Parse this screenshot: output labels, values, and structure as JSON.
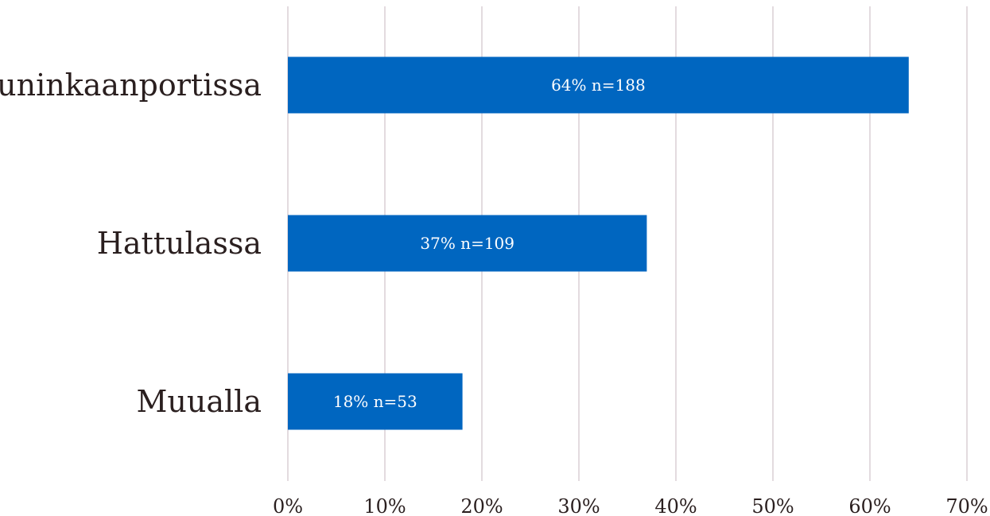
{
  "chart_data": {
    "type": "bar",
    "orientation": "horizontal",
    "title": "",
    "xlabel": "",
    "ylabel": "",
    "categories": [
      "Kuninkaanportissa",
      "Hattulassa",
      "Muualla"
    ],
    "values": [
      64,
      37,
      18
    ],
    "data_labels": [
      "64% n=188",
      "37% n=109",
      "18% n=53"
    ],
    "xlim": [
      0,
      70
    ],
    "x_ticks": [
      0,
      10,
      20,
      30,
      40,
      50,
      60,
      70
    ],
    "x_tick_labels": [
      "0%",
      "10%",
      "20%",
      "30%",
      "40%",
      "50%",
      "60%",
      "70%"
    ],
    "grid": true,
    "legend": "none",
    "colors": {
      "bar": "#0066c0",
      "gridline": "#e3dbdf",
      "text": "#2a1f1f",
      "data_label": "#ffffff"
    }
  }
}
